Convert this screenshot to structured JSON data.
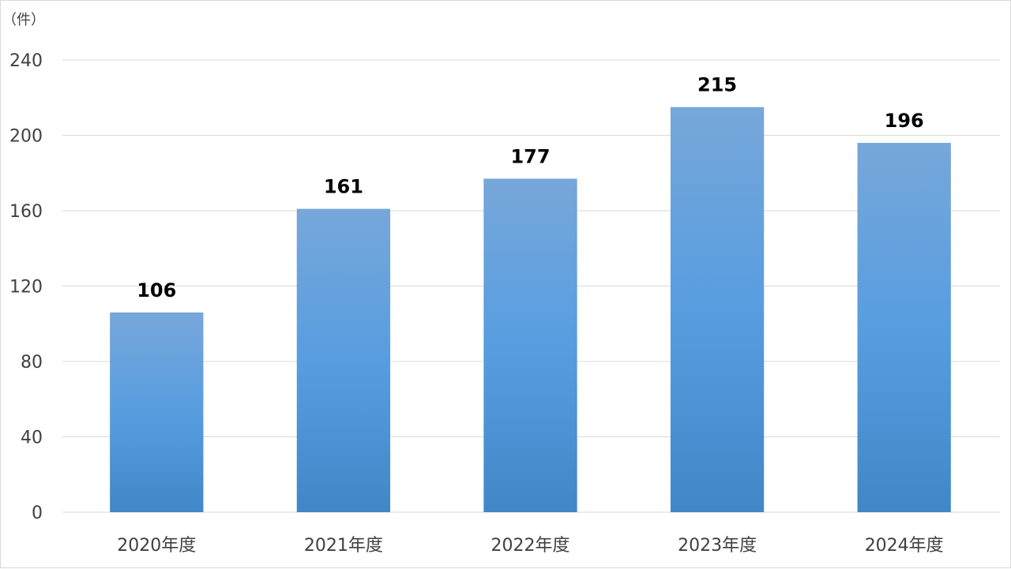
{
  "chart_data": {
    "type": "bar",
    "title": "",
    "xlabel": "",
    "ylabel": "",
    "unit_label": "（件）",
    "categories": [
      "2020年度",
      "2021年度",
      "2022年度",
      "2023年度",
      "2024年度"
    ],
    "series": [
      {
        "values": [
          106,
          161,
          177,
          215,
          196
        ]
      }
    ],
    "ylim": [
      0,
      240
    ],
    "yticks": [
      0,
      40,
      80,
      120,
      160,
      200,
      240
    ],
    "grid": true,
    "legend": "none",
    "data_labels": true
  },
  "colors": {
    "bar_top": "#77a7da",
    "bar_mid": "#579de0",
    "bar_bottom": "#4187c8",
    "grid": "#d9d9d9",
    "text": "#404040",
    "label": "#000000"
  }
}
